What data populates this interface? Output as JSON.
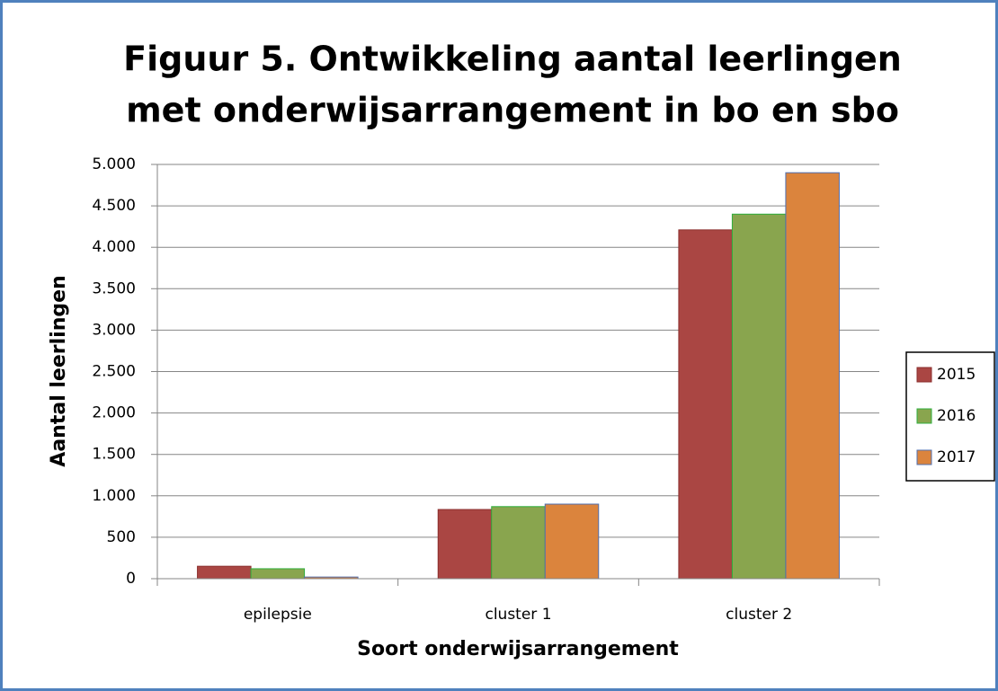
{
  "chart_data": {
    "type": "bar",
    "title": [
      "Figuur 5. Ontwikkeling aantal leerlingen",
      "met onderwijsarrangement in bo en sbo"
    ],
    "x_label": "Soort onderwijsarrangement",
    "y_label": "Aantal leerlingen",
    "categories": [
      "epilepsie",
      "cluster 1",
      "cluster 2"
    ],
    "series": [
      {
        "name": "2015",
        "color": "#aa4643",
        "border": "#8b2e2c",
        "values": [
          150,
          835,
          4210
        ]
      },
      {
        "name": "2016",
        "color": "#89a54e",
        "border": "#2fae3c",
        "values": [
          120,
          870,
          4400
        ]
      },
      {
        "name": "2017",
        "color": "#db843d",
        "border": "#4f6fb0",
        "values": [
          20,
          900,
          4900
        ]
      }
    ],
    "ylim": [
      0,
      5000
    ],
    "yticks": [
      0,
      500,
      {
        "value": 1000,
        "label": "1.000"
      },
      {
        "value": 1500,
        "label": "1.500"
      },
      {
        "value": 2000,
        "label": "2.000"
      },
      {
        "value": 2500,
        "label": "2.500"
      },
      {
        "value": 3000,
        "label": "3.000"
      },
      {
        "value": 3500,
        "label": "3.500"
      },
      {
        "value": 4000,
        "label": "4.000"
      },
      {
        "value": 4500,
        "label": "4.500"
      },
      {
        "value": 5000,
        "label": "5.000"
      }
    ],
    "grid": true,
    "legend": "right"
  }
}
